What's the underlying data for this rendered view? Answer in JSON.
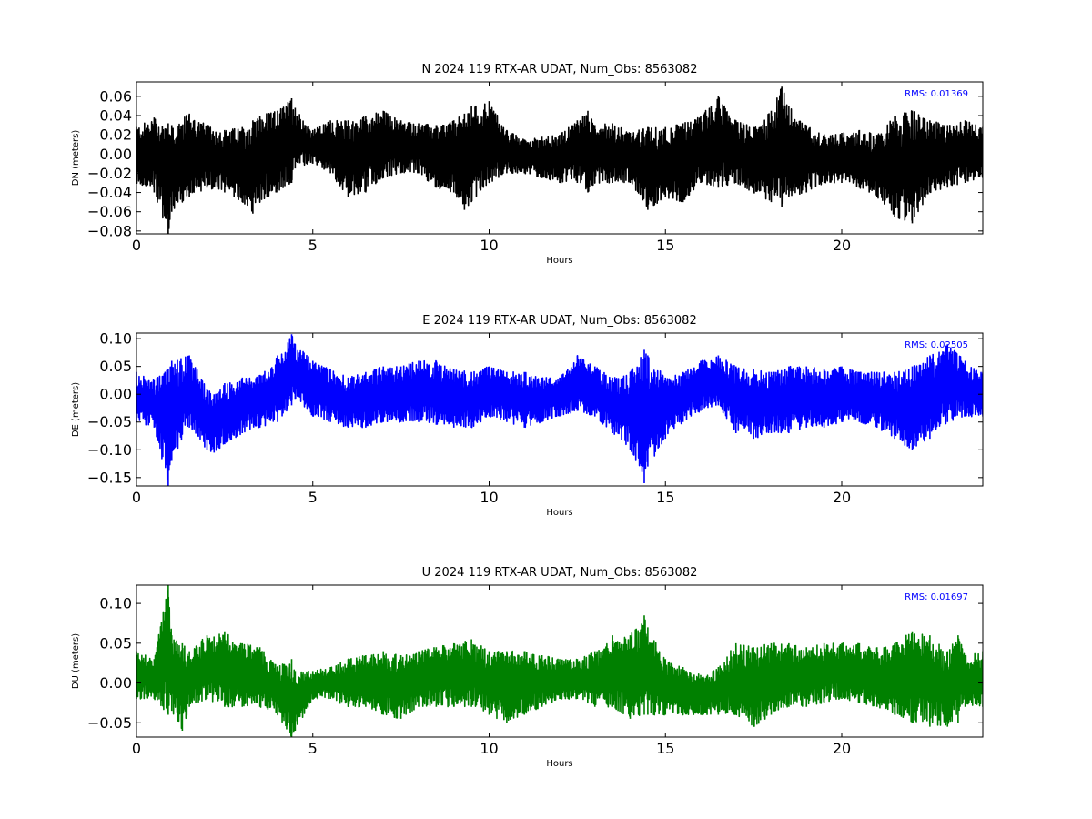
{
  "chart_data": [
    {
      "type": "line",
      "title": "N 2024 119 RTX-AR  UDAT, Num_Obs: 8563082",
      "xlabel": "Hours",
      "ylabel": "DN (meters)",
      "xlim": [
        0,
        24
      ],
      "ylim": [
        -0.083,
        0.075
      ],
      "xticks": [
        0,
        5,
        10,
        15,
        20
      ],
      "xtick_labels": [
        "0",
        "5",
        "10",
        "15",
        "20"
      ],
      "yticks": [
        0.06,
        0.04,
        0.02,
        0.0,
        -0.02,
        -0.04,
        -0.06,
        -0.08
      ],
      "ytick_labels": [
        "0.06",
        "0.04",
        "0.02",
        "0.00",
        "−0.02",
        "−0.04",
        "−0.06",
        "−0.08"
      ],
      "annotation": "RMS:  0.01369",
      "annotation_color": "#0000ff",
      "grid": false,
      "series": [
        {
          "color": "#000000",
          "x": [
            0.0,
            0.5,
            0.9,
            1.0,
            1.5,
            2.0,
            2.5,
            3.0,
            3.3,
            3.5,
            4.0,
            4.4,
            4.5,
            5.0,
            5.5,
            6.0,
            6.5,
            7.0,
            7.5,
            8.0,
            8.5,
            9.0,
            9.3,
            9.5,
            10.0,
            10.5,
            11.0,
            11.5,
            12.0,
            12.5,
            12.8,
            13.0,
            13.5,
            14.0,
            14.5,
            15.0,
            15.5,
            16.0,
            16.5,
            17.0,
            17.5,
            18.0,
            18.3,
            18.5,
            19.0,
            19.5,
            20.0,
            20.5,
            21.0,
            21.5,
            22.0,
            22.5,
            23.0,
            23.5,
            24.0
          ],
          "upper": [
            0.028,
            0.038,
            0.032,
            0.03,
            0.042,
            0.03,
            0.025,
            0.028,
            0.035,
            0.04,
            0.045,
            0.058,
            0.048,
            0.025,
            0.035,
            0.035,
            0.04,
            0.045,
            0.035,
            0.032,
            0.03,
            0.035,
            0.042,
            0.05,
            0.055,
            0.025,
            0.015,
            0.018,
            0.02,
            0.035,
            0.045,
            0.03,
            0.032,
            0.022,
            0.028,
            0.028,
            0.032,
            0.04,
            0.06,
            0.035,
            0.028,
            0.045,
            0.07,
            0.05,
            0.03,
            0.02,
            0.022,
            0.025,
            0.02,
            0.04,
            0.045,
            0.035,
            0.03,
            0.035,
            0.028
          ],
          "lower": [
            -0.03,
            -0.04,
            -0.083,
            -0.06,
            -0.045,
            -0.035,
            -0.04,
            -0.05,
            -0.062,
            -0.05,
            -0.04,
            -0.03,
            -0.015,
            -0.01,
            -0.02,
            -0.045,
            -0.04,
            -0.025,
            -0.02,
            -0.02,
            -0.035,
            -0.04,
            -0.058,
            -0.05,
            -0.03,
            -0.02,
            -0.02,
            -0.025,
            -0.03,
            -0.03,
            -0.04,
            -0.03,
            -0.03,
            -0.03,
            -0.058,
            -0.045,
            -0.05,
            -0.03,
            -0.035,
            -0.03,
            -0.04,
            -0.05,
            -0.055,
            -0.045,
            -0.04,
            -0.03,
            -0.03,
            -0.035,
            -0.045,
            -0.065,
            -0.072,
            -0.04,
            -0.035,
            -0.03,
            -0.025
          ]
        }
      ]
    },
    {
      "type": "line",
      "title": "E 2024 119 RTX-AR  UDAT, Num_Obs: 8563082",
      "xlabel": "Hours",
      "ylabel": "DE (meters)",
      "xlim": [
        0,
        24
      ],
      "ylim": [
        -0.165,
        0.11
      ],
      "xticks": [
        0,
        5,
        10,
        15,
        20
      ],
      "xtick_labels": [
        "0",
        "5",
        "10",
        "15",
        "20"
      ],
      "yticks": [
        0.1,
        0.05,
        0.0,
        -0.05,
        -0.1,
        -0.15
      ],
      "ytick_labels": [
        "0.10",
        "0.05",
        "0.00",
        "−0.05",
        "−0.10",
        "−0.15"
      ],
      "annotation": "RMS:  0.02505",
      "annotation_color": "#0000ff",
      "grid": false,
      "series": [
        {
          "color": "#0000ff",
          "x": [
            0.0,
            0.5,
            0.9,
            1.0,
            1.5,
            2.0,
            2.2,
            2.5,
            3.0,
            3.5,
            4.0,
            4.4,
            4.5,
            5.0,
            5.5,
            6.0,
            6.5,
            7.0,
            7.5,
            8.0,
            8.5,
            9.0,
            9.5,
            10.0,
            10.5,
            11.0,
            11.5,
            12.0,
            12.5,
            13.0,
            13.5,
            14.0,
            14.4,
            14.5,
            15.0,
            15.5,
            16.0,
            16.5,
            17.0,
            17.5,
            18.0,
            18.5,
            19.0,
            19.5,
            20.0,
            20.5,
            21.0,
            21.5,
            22.0,
            22.5,
            23.0,
            23.5,
            24.0
          ],
          "upper": [
            0.04,
            0.025,
            0.045,
            0.06,
            0.07,
            0.01,
            0.0,
            0.02,
            0.03,
            0.035,
            0.07,
            0.108,
            0.09,
            0.06,
            0.045,
            0.03,
            0.04,
            0.05,
            0.05,
            0.06,
            0.06,
            0.045,
            0.04,
            0.05,
            0.04,
            0.04,
            0.03,
            0.03,
            0.07,
            0.05,
            0.03,
            0.04,
            0.08,
            0.07,
            0.03,
            0.04,
            0.06,
            0.07,
            0.05,
            0.045,
            0.04,
            0.05,
            0.05,
            0.045,
            0.05,
            0.04,
            0.04,
            0.04,
            0.05,
            0.07,
            0.09,
            0.06,
            0.04
          ],
          "lower": [
            -0.05,
            -0.06,
            -0.165,
            -0.12,
            -0.06,
            -0.1,
            -0.105,
            -0.09,
            -0.07,
            -0.06,
            -0.05,
            -0.02,
            -0.01,
            -0.04,
            -0.05,
            -0.06,
            -0.06,
            -0.05,
            -0.05,
            -0.05,
            -0.055,
            -0.06,
            -0.06,
            -0.04,
            -0.05,
            -0.06,
            -0.05,
            -0.04,
            -0.03,
            -0.04,
            -0.07,
            -0.1,
            -0.16,
            -0.13,
            -0.08,
            -0.05,
            -0.03,
            -0.02,
            -0.07,
            -0.08,
            -0.07,
            -0.07,
            -0.06,
            -0.06,
            -0.05,
            -0.05,
            -0.06,
            -0.08,
            -0.1,
            -0.08,
            -0.05,
            -0.04,
            -0.04
          ]
        }
      ]
    },
    {
      "type": "line",
      "title": "U 2024 119 RTX-AR  UDAT, Num_Obs: 8563082",
      "xlabel": "Hours",
      "ylabel": "DU (meters)",
      "xlim": [
        0,
        24
      ],
      "ylim": [
        -0.068,
        0.123
      ],
      "xticks": [
        0,
        5,
        10,
        15,
        20
      ],
      "xtick_labels": [
        "0",
        "5",
        "10",
        "15",
        "20"
      ],
      "yticks": [
        0.1,
        0.05,
        0.0,
        -0.05
      ],
      "ytick_labels": [
        "0.10",
        "0.05",
        "0.00",
        "−0.05"
      ],
      "annotation": "RMS:  0.01697",
      "annotation_color": "#0000ff",
      "grid": false,
      "series": [
        {
          "color": "#008000",
          "x": [
            0.0,
            0.5,
            0.9,
            1.0,
            1.3,
            1.5,
            2.0,
            2.5,
            3.0,
            3.5,
            4.0,
            4.4,
            4.5,
            5.0,
            5.5,
            6.0,
            6.5,
            7.0,
            7.5,
            8.0,
            8.5,
            9.0,
            9.5,
            10.0,
            10.5,
            11.0,
            11.5,
            12.0,
            12.5,
            13.0,
            13.5,
            14.0,
            14.4,
            14.5,
            15.0,
            15.5,
            16.0,
            16.5,
            17.0,
            17.5,
            18.0,
            18.5,
            19.0,
            19.5,
            20.0,
            20.5,
            21.0,
            21.5,
            22.0,
            22.5,
            23.0,
            23.3,
            23.5,
            24.0
          ],
          "upper": [
            0.04,
            0.03,
            0.123,
            0.06,
            0.05,
            0.04,
            0.06,
            0.065,
            0.05,
            0.045,
            0.02,
            0.03,
            0.015,
            0.015,
            0.02,
            0.03,
            0.035,
            0.04,
            0.035,
            0.04,
            0.045,
            0.05,
            0.055,
            0.04,
            0.04,
            0.04,
            0.035,
            0.03,
            0.03,
            0.04,
            0.06,
            0.06,
            0.085,
            0.07,
            0.03,
            0.02,
            0.01,
            0.02,
            0.05,
            0.045,
            0.05,
            0.05,
            0.045,
            0.05,
            0.05,
            0.05,
            0.045,
            0.05,
            0.065,
            0.06,
            0.04,
            0.06,
            0.035,
            0.04
          ],
          "lower": [
            -0.02,
            -0.02,
            -0.04,
            -0.035,
            -0.06,
            -0.03,
            -0.02,
            -0.03,
            -0.03,
            -0.03,
            -0.04,
            -0.068,
            -0.06,
            -0.02,
            -0.02,
            -0.03,
            -0.03,
            -0.04,
            -0.045,
            -0.03,
            -0.03,
            -0.03,
            -0.03,
            -0.04,
            -0.05,
            -0.04,
            -0.03,
            -0.02,
            -0.02,
            -0.03,
            -0.03,
            -0.045,
            -0.04,
            -0.04,
            -0.04,
            -0.04,
            -0.04,
            -0.04,
            -0.04,
            -0.055,
            -0.04,
            -0.03,
            -0.03,
            -0.025,
            -0.02,
            -0.025,
            -0.03,
            -0.04,
            -0.05,
            -0.055,
            -0.055,
            -0.05,
            -0.03,
            -0.03
          ]
        }
      ]
    }
  ]
}
